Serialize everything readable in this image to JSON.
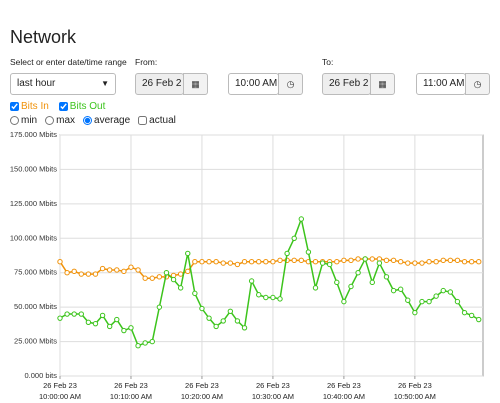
{
  "title": "Network",
  "range_label": "Select or enter date/time range",
  "range_select": "last hour",
  "from": {
    "label": "From:",
    "date": "26 Feb 2",
    "time": "10:00 AM"
  },
  "to": {
    "label": "To:",
    "date": "26 Feb 2",
    "time": "11:00 AM"
  },
  "series_checked": [
    true,
    true
  ],
  "stats": {
    "options": [
      "min",
      "max",
      "average"
    ],
    "selected": "average",
    "actual": {
      "label": "actual",
      "checked": false
    }
  },
  "chart_data": {
    "type": "line",
    "x": [
      0,
      1,
      2,
      3,
      4,
      5,
      6,
      7,
      8,
      9,
      10,
      11,
      12,
      13,
      14,
      15,
      16,
      17,
      18,
      19,
      20,
      21,
      22,
      23,
      24,
      25,
      26,
      27,
      28,
      29,
      30,
      31,
      32,
      33,
      34,
      35,
      36,
      37,
      38,
      39,
      40,
      41,
      42,
      43,
      44,
      45,
      46,
      47,
      48,
      49,
      50,
      51,
      52,
      53,
      54,
      55,
      56,
      57,
      58,
      59
    ],
    "series": [
      {
        "name": "Bits In",
        "color": "#f0920a",
        "values": [
          83,
          75,
          76,
          74,
          74,
          74,
          78,
          77,
          77,
          76,
          79,
          77,
          71,
          71,
          72,
          72,
          73,
          74,
          76,
          83,
          83,
          83,
          83,
          82,
          82,
          81,
          83,
          83,
          83,
          83,
          83,
          84,
          84,
          84,
          84,
          83,
          83,
          83,
          83,
          83,
          84,
          84,
          85,
          85,
          85,
          85,
          84,
          84,
          83,
          82,
          82,
          82,
          83,
          83,
          84,
          84,
          84,
          83,
          83,
          83
        ]
      },
      {
        "name": "Bits Out",
        "color": "#3cc41c",
        "values": [
          42,
          45,
          45,
          45,
          39,
          38,
          44,
          36,
          41,
          33,
          35,
          22,
          24,
          25,
          50,
          75,
          70,
          64,
          89,
          60,
          49,
          42,
          36,
          40,
          47,
          40,
          35,
          69,
          59,
          57,
          57,
          56,
          89,
          100,
          114,
          90,
          64,
          82,
          81,
          68,
          54,
          65,
          75,
          85,
          68,
          82,
          72,
          62,
          63,
          55,
          46,
          54,
          54,
          58,
          62,
          61,
          54,
          46,
          44,
          41
        ]
      }
    ],
    "xlim": [
      0,
      59.6
    ],
    "xticks": [
      {
        "value": 0,
        "label": "26 Feb 23\n10:00:00 AM"
      },
      {
        "value": 10,
        "label": "26 Feb 23\n10:10:00 AM"
      },
      {
        "value": 20,
        "label": "26 Feb 23\n10:20:00 AM"
      },
      {
        "value": 30,
        "label": "26 Feb 23\n10:30:00 AM"
      },
      {
        "value": 40,
        "label": "26 Feb 23\n10:40:00 AM"
      },
      {
        "value": 50,
        "label": "26 Feb 23\n10:50:00 AM"
      }
    ],
    "ylim": [
      0,
      175
    ],
    "yticks": [
      {
        "value": 0,
        "label": "0.000 bits"
      },
      {
        "value": 25,
        "label": "25.000 Mbits"
      },
      {
        "value": 50,
        "label": "50.000 Mbits"
      },
      {
        "value": 75,
        "label": "75.000 Mbits"
      },
      {
        "value": 100,
        "label": "100.000 Mbits"
      },
      {
        "value": 125,
        "label": "125.000 Mbits"
      },
      {
        "value": 150,
        "label": "150.000 Mbits"
      },
      {
        "value": 175,
        "label": "175.000 Mbits"
      }
    ],
    "grid": true,
    "marker": "circle"
  }
}
